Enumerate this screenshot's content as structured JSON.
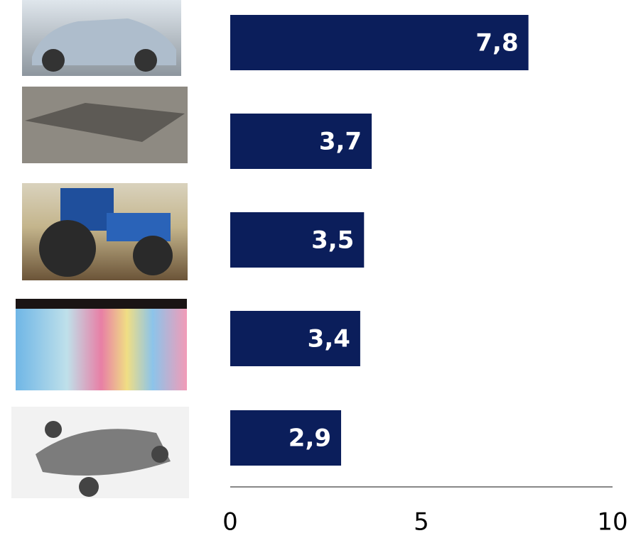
{
  "chart_data": {
    "type": "bar",
    "orientation": "horizontal",
    "categories": [
      null,
      null,
      null,
      null,
      null
    ],
    "values": [
      7.8,
      3.7,
      3.5,
      3.4,
      2.9
    ],
    "value_labels": [
      "7,8",
      "3,7",
      "3,5",
      "3,4",
      "2,9"
    ],
    "color": "#0b1e5b",
    "xlim": [
      0,
      10
    ],
    "xticks": [
      0,
      5,
      10
    ],
    "grid": false
  }
}
